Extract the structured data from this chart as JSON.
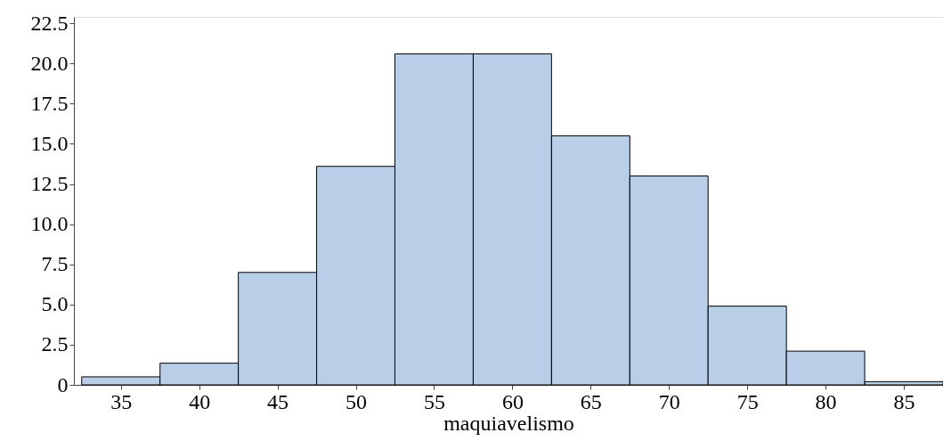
{
  "chart_data": {
    "type": "histogram",
    "xlabel": "maquiavelismo",
    "bins": [
      32.5,
      37.5,
      42.5,
      47.5,
      52.5,
      57.5,
      62.5,
      67.5,
      72.5,
      77.5,
      82.5,
      87.5
    ],
    "values": [
      0.5,
      1.35,
      7.0,
      13.6,
      20.6,
      20.6,
      15.5,
      13.0,
      4.9,
      2.1,
      0.2
    ],
    "color": "#b9cfe7",
    "xlim": [
      32,
      87.5
    ],
    "ylim": [
      0,
      22.9
    ],
    "xticks": [
      35,
      40,
      45,
      50,
      55,
      60,
      65,
      70,
      75,
      80,
      85
    ],
    "yticks": [
      0,
      {
        "value": 2.5,
        "label": "2.5"
      },
      {
        "value": 5,
        "label": "5.0"
      },
      {
        "value": 7.5,
        "label": "7.5"
      },
      {
        "value": 10,
        "label": "10.0"
      },
      {
        "value": 12.5,
        "label": "12.5"
      },
      {
        "value": 15,
        "label": "15.0"
      },
      {
        "value": 17.5,
        "label": "17.5"
      },
      {
        "value": 20,
        "label": "20.0"
      },
      {
        "value": 22.5,
        "label": "22.5"
      }
    ],
    "grid": false
  }
}
